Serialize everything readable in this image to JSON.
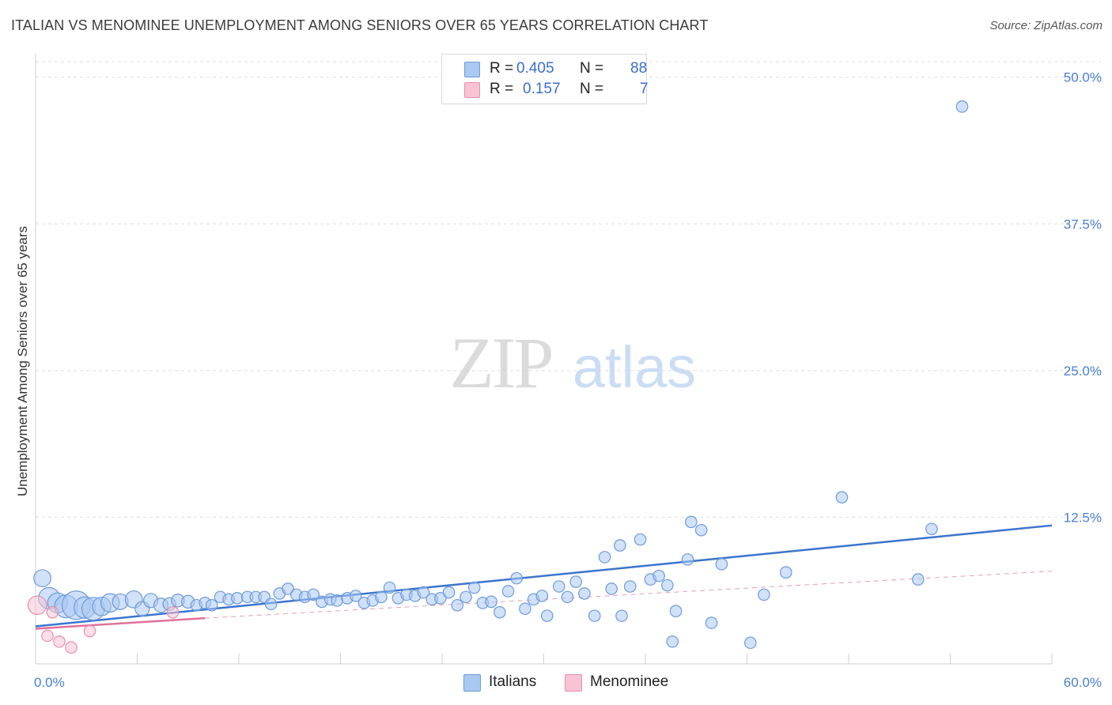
{
  "title": "ITALIAN VS MENOMINEE UNEMPLOYMENT AMONG SENIORS OVER 65 YEARS CORRELATION CHART",
  "source": "Source: ZipAtlas.com",
  "watermark": {
    "zip": "ZIP",
    "atlas": "atlas"
  },
  "legend": {
    "rows": [
      {
        "r_label": "R =",
        "r_value": "0.405",
        "n_label": "N =",
        "n_value": "88",
        "color": "#a9c8f2",
        "border": "#6e9bd8"
      },
      {
        "r_label": "R =",
        "r_value": "0.157",
        "n_label": "N =",
        "n_value": "7",
        "color": "#f8c3d3",
        "border": "#e58fae"
      }
    ]
  },
  "bottom_legend": [
    {
      "label": "Italians",
      "color": "#a9c8f2",
      "border": "#6e9bd8"
    },
    {
      "label": "Menominee",
      "color": "#f8c3d3",
      "border": "#e58fae"
    }
  ],
  "chart_data": {
    "type": "scatter",
    "title": "ITALIAN VS MENOMINEE UNEMPLOYMENT AMONG SENIORS OVER 65 YEARS CORRELATION CHART",
    "xlabel": "",
    "ylabel": "Unemployment Among Seniors over 65 years",
    "xlim": [
      0,
      60
    ],
    "ylim": [
      0,
      52
    ],
    "x_tick_labels": [
      {
        "value": 0,
        "label": "0.0%"
      },
      {
        "value": 60,
        "label": "60.0%"
      }
    ],
    "y_tick_labels": [
      {
        "value": 12.5,
        "label": "12.5%"
      },
      {
        "value": 25,
        "label": "25.0%"
      },
      {
        "value": 37.5,
        "label": "37.5%"
      },
      {
        "value": 50,
        "label": "50.0%"
      }
    ],
    "series": [
      {
        "name": "Italians",
        "color": "#a9c8f2",
        "stroke": "#6e9bd8",
        "trend": {
          "x0": 0,
          "y0": 3.2,
          "x1": 60,
          "y1": 11.8,
          "color": "#3a74cf"
        },
        "points": [
          [
            0.4,
            7.3,
            1.2
          ],
          [
            0.8,
            5.6,
            1.5
          ],
          [
            1.3,
            5.2,
            1.4
          ],
          [
            1.8,
            4.9,
            1.6
          ],
          [
            2.4,
            5.0,
            2.0
          ],
          [
            2.9,
            4.8,
            1.5
          ],
          [
            3.4,
            4.7,
            1.6
          ],
          [
            3.9,
            4.9,
            1.3
          ],
          [
            4.4,
            5.2,
            1.3
          ],
          [
            5.0,
            5.3,
            1.1
          ],
          [
            5.8,
            5.5,
            1.2
          ],
          [
            6.3,
            4.7,
            1.0
          ],
          [
            6.8,
            5.4,
            1.0
          ],
          [
            7.4,
            5.0,
            1.0
          ],
          [
            7.9,
            5.1,
            0.9
          ],
          [
            8.4,
            5.4,
            0.9
          ],
          [
            9.0,
            5.3,
            0.9
          ],
          [
            9.5,
            5.0,
            0.8
          ],
          [
            10.0,
            5.2,
            0.8
          ],
          [
            10.4,
            5.0,
            0.8
          ],
          [
            10.9,
            5.7,
            0.8
          ],
          [
            11.4,
            5.5,
            0.8
          ],
          [
            11.9,
            5.6,
            0.8
          ],
          [
            12.5,
            5.7,
            0.8
          ],
          [
            13.0,
            5.7,
            0.8
          ],
          [
            13.5,
            5.7,
            0.8
          ],
          [
            13.9,
            5.1,
            0.8
          ],
          [
            14.4,
            6.0,
            0.8
          ],
          [
            14.9,
            6.4,
            0.8
          ],
          [
            15.4,
            5.9,
            0.8
          ],
          [
            15.9,
            5.7,
            0.8
          ],
          [
            16.4,
            5.9,
            0.8
          ],
          [
            16.9,
            5.3,
            0.8
          ],
          [
            17.4,
            5.5,
            0.8
          ],
          [
            17.8,
            5.4,
            0.8
          ],
          [
            18.4,
            5.6,
            0.8
          ],
          [
            18.9,
            5.8,
            0.8
          ],
          [
            19.4,
            5.2,
            0.8
          ],
          [
            19.9,
            5.4,
            0.8
          ],
          [
            20.4,
            5.7,
            0.8
          ],
          [
            20.9,
            6.5,
            0.8
          ],
          [
            21.4,
            5.6,
            0.8
          ],
          [
            21.9,
            5.9,
            0.8
          ],
          [
            22.4,
            5.8,
            0.8
          ],
          [
            22.9,
            6.1,
            0.8
          ],
          [
            23.4,
            5.5,
            0.8
          ],
          [
            23.9,
            5.6,
            0.8
          ],
          [
            24.4,
            6.1,
            0.8
          ],
          [
            24.9,
            5.0,
            0.8
          ],
          [
            25.4,
            5.7,
            0.8
          ],
          [
            25.9,
            6.5,
            0.8
          ],
          [
            26.4,
            5.2,
            0.8
          ],
          [
            26.9,
            5.3,
            0.8
          ],
          [
            27.4,
            4.4,
            0.8
          ],
          [
            27.9,
            6.2,
            0.8
          ],
          [
            28.4,
            7.3,
            0.8
          ],
          [
            28.9,
            4.7,
            0.8
          ],
          [
            29.4,
            5.5,
            0.8
          ],
          [
            29.9,
            5.8,
            0.8
          ],
          [
            30.2,
            4.1,
            0.8
          ],
          [
            30.9,
            6.6,
            0.8
          ],
          [
            31.4,
            5.7,
            0.8
          ],
          [
            31.9,
            7.0,
            0.8
          ],
          [
            32.4,
            6.0,
            0.8
          ],
          [
            33.0,
            4.1,
            0.8
          ],
          [
            33.6,
            9.1,
            0.8
          ],
          [
            34.0,
            6.4,
            0.8
          ],
          [
            34.5,
            10.1,
            0.8
          ],
          [
            35.1,
            6.6,
            0.8
          ],
          [
            35.7,
            10.6,
            0.8
          ],
          [
            36.3,
            7.2,
            0.8
          ],
          [
            36.8,
            7.5,
            0.8
          ],
          [
            37.3,
            6.7,
            0.8
          ],
          [
            37.6,
            1.9,
            0.8
          ],
          [
            37.8,
            4.5,
            0.8
          ],
          [
            38.5,
            8.9,
            0.8
          ],
          [
            38.7,
            12.1,
            0.8
          ],
          [
            39.3,
            11.4,
            0.8
          ],
          [
            39.9,
            3.5,
            0.8
          ],
          [
            40.5,
            8.5,
            0.8
          ],
          [
            42.2,
            1.8,
            0.8
          ],
          [
            43.0,
            5.9,
            0.8
          ],
          [
            44.3,
            7.8,
            0.8
          ],
          [
            47.6,
            14.2,
            0.8
          ],
          [
            52.1,
            7.2,
            0.8
          ],
          [
            52.9,
            11.5,
            0.8
          ],
          [
            54.7,
            47.5,
            0.8
          ],
          [
            34.6,
            4.1,
            0.8
          ]
        ]
      },
      {
        "name": "Menominee",
        "color": "#f8c3d3",
        "stroke": "#e58fae",
        "trend": {
          "x0": 0,
          "y0": 3.0,
          "x1": 10,
          "y1": 3.9,
          "color": "#e0709a",
          "ext_x1": 60,
          "ext_y1": 7.9
        },
        "points": [
          [
            0.1,
            5.0,
            1.3
          ],
          [
            1.0,
            4.4,
            0.8
          ],
          [
            0.7,
            2.4,
            0.8
          ],
          [
            1.4,
            1.9,
            0.8
          ],
          [
            2.1,
            1.4,
            0.8
          ],
          [
            3.2,
            2.8,
            0.8
          ],
          [
            8.1,
            4.4,
            0.8
          ]
        ]
      }
    ]
  }
}
